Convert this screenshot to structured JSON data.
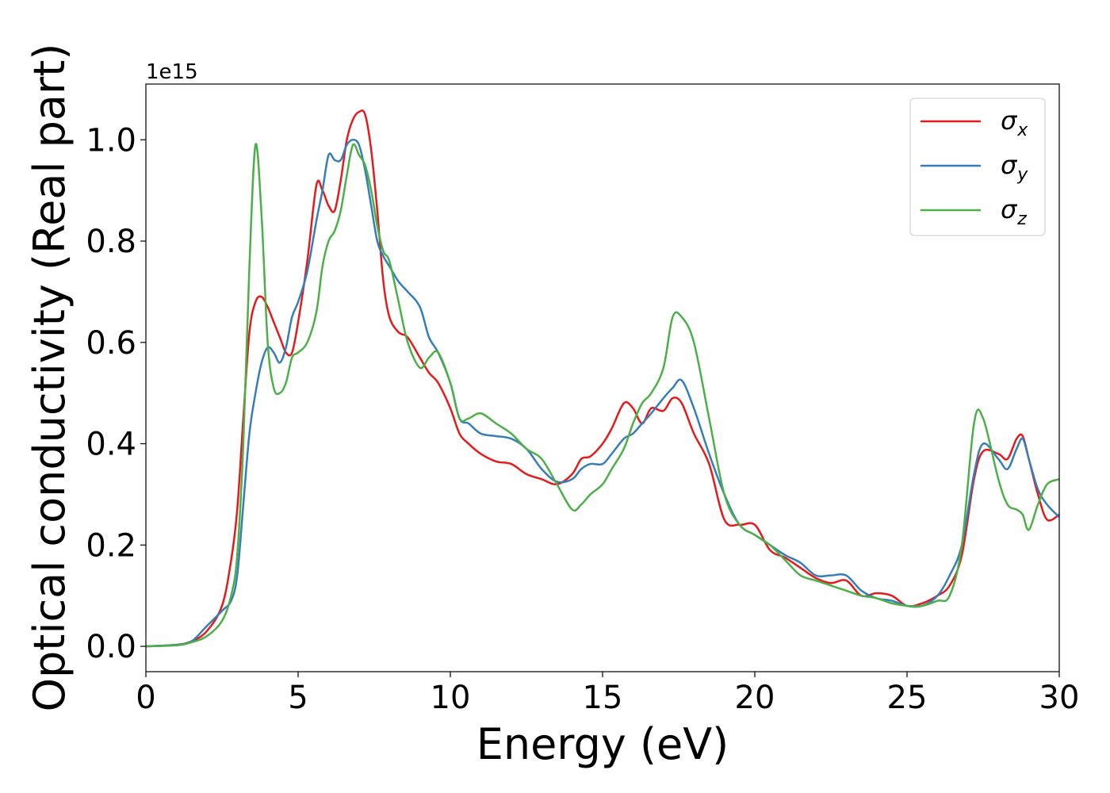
{
  "chart_data": {
    "type": "line",
    "title": "",
    "xlabel": "Energy (eV)",
    "ylabel": "Optical conductivity (Real part)",
    "y_offset_label": "1e15",
    "xlim": [
      0,
      30
    ],
    "ylim": [
      -0.05,
      1.11
    ],
    "x_ticks": [
      0,
      5,
      10,
      15,
      20,
      25,
      30
    ],
    "x_tick_labels": [
      "0",
      "5",
      "10",
      "15",
      "20",
      "25",
      "30"
    ],
    "y_ticks": [
      0.0,
      0.2,
      0.4,
      0.6,
      0.8,
      1.0
    ],
    "y_tick_labels": [
      "0.0",
      "0.2",
      "0.4",
      "0.6",
      "0.8",
      "1.0"
    ],
    "grid": false,
    "legend_position": "top-right",
    "series": [
      {
        "name": "σx",
        "symbol": "σ",
        "subscript": "x",
        "color": "#e41a1c",
        "x": [
          0,
          1,
          1.5,
          2,
          2.5,
          2.8,
          3.0,
          3.2,
          3.4,
          3.6,
          3.8,
          4.0,
          4.2,
          4.4,
          4.6,
          4.8,
          5.0,
          5.3,
          5.6,
          5.8,
          6.0,
          6.2,
          6.4,
          6.6,
          6.8,
          7.0,
          7.2,
          7.4,
          7.6,
          7.8,
          8.0,
          8.3,
          8.6,
          9.0,
          9.3,
          9.6,
          10.0,
          10.3,
          10.6,
          11.0,
          11.5,
          12.0,
          12.5,
          13.0,
          13.5,
          14.0,
          14.3,
          14.6,
          15.0,
          15.3,
          15.7,
          16.0,
          16.3,
          16.6,
          17.0,
          17.3,
          17.6,
          18.0,
          18.5,
          19.0,
          19.5,
          20.0,
          20.5,
          21.0,
          21.5,
          22.0,
          22.5,
          23.0,
          23.5,
          24.0,
          24.5,
          25.0,
          25.5,
          26.0,
          26.4,
          26.8,
          27.2,
          27.5,
          28.0,
          28.3,
          28.6,
          28.8,
          29.0,
          29.3,
          29.6,
          30.0
        ],
        "y": [
          0.0,
          0.003,
          0.01,
          0.03,
          0.08,
          0.17,
          0.27,
          0.45,
          0.62,
          0.68,
          0.69,
          0.67,
          0.64,
          0.61,
          0.58,
          0.58,
          0.64,
          0.76,
          0.91,
          0.9,
          0.87,
          0.86,
          0.92,
          1.0,
          1.04,
          1.055,
          1.05,
          0.98,
          0.86,
          0.72,
          0.65,
          0.62,
          0.61,
          0.57,
          0.54,
          0.52,
          0.47,
          0.42,
          0.4,
          0.38,
          0.365,
          0.36,
          0.34,
          0.33,
          0.32,
          0.34,
          0.37,
          0.375,
          0.4,
          0.43,
          0.48,
          0.47,
          0.44,
          0.47,
          0.465,
          0.49,
          0.48,
          0.42,
          0.36,
          0.25,
          0.24,
          0.24,
          0.19,
          0.175,
          0.155,
          0.135,
          0.125,
          0.13,
          0.1,
          0.105,
          0.1,
          0.08,
          0.085,
          0.1,
          0.12,
          0.18,
          0.33,
          0.385,
          0.38,
          0.37,
          0.41,
          0.415,
          0.37,
          0.3,
          0.25,
          0.26
        ]
      },
      {
        "name": "σy",
        "symbol": "σ",
        "subscript": "y",
        "color": "#377eb8",
        "x": [
          0,
          1,
          1.5,
          2,
          2.5,
          2.8,
          3.0,
          3.2,
          3.4,
          3.6,
          3.8,
          4.0,
          4.2,
          4.4,
          4.6,
          4.8,
          5.0,
          5.3,
          5.6,
          5.8,
          6.0,
          6.2,
          6.4,
          6.6,
          6.8,
          7.0,
          7.2,
          7.4,
          7.6,
          7.8,
          8.0,
          8.3,
          8.6,
          9.0,
          9.3,
          9.6,
          10.0,
          10.3,
          10.6,
          11.0,
          11.5,
          12.0,
          12.5,
          13.0,
          13.5,
          14.0,
          14.3,
          14.6,
          15.0,
          15.3,
          15.7,
          16.0,
          16.3,
          16.6,
          17.0,
          17.3,
          17.6,
          18.0,
          18.5,
          19.0,
          19.5,
          20.0,
          20.5,
          21.0,
          21.5,
          22.0,
          22.5,
          23.0,
          23.5,
          24.0,
          24.5,
          25.0,
          25.5,
          26.0,
          26.4,
          26.8,
          27.2,
          27.5,
          28.0,
          28.3,
          28.6,
          28.8,
          29.0,
          29.3,
          29.6,
          30.0
        ],
        "y": [
          0.0,
          0.003,
          0.01,
          0.04,
          0.07,
          0.09,
          0.14,
          0.28,
          0.42,
          0.5,
          0.56,
          0.59,
          0.58,
          0.56,
          0.59,
          0.65,
          0.68,
          0.74,
          0.84,
          0.9,
          0.97,
          0.96,
          0.96,
          0.99,
          1.0,
          0.99,
          0.94,
          0.87,
          0.8,
          0.77,
          0.75,
          0.72,
          0.7,
          0.67,
          0.61,
          0.58,
          0.52,
          0.45,
          0.44,
          0.42,
          0.415,
          0.41,
          0.39,
          0.35,
          0.325,
          0.33,
          0.35,
          0.36,
          0.36,
          0.38,
          0.41,
          0.42,
          0.44,
          0.46,
          0.49,
          0.51,
          0.525,
          0.47,
          0.38,
          0.3,
          0.24,
          0.22,
          0.2,
          0.18,
          0.165,
          0.14,
          0.14,
          0.14,
          0.11,
          0.095,
          0.09,
          0.08,
          0.08,
          0.1,
          0.14,
          0.2,
          0.34,
          0.4,
          0.37,
          0.35,
          0.39,
          0.41,
          0.37,
          0.31,
          0.28,
          0.255
        ]
      },
      {
        "name": "σz",
        "symbol": "σ",
        "subscript": "z",
        "color": "#4daf4a",
        "x": [
          0,
          1,
          1.5,
          2,
          2.5,
          2.8,
          3.0,
          3.2,
          3.4,
          3.6,
          3.8,
          4.0,
          4.2,
          4.4,
          4.6,
          4.8,
          5.0,
          5.3,
          5.6,
          5.8,
          6.0,
          6.2,
          6.4,
          6.6,
          6.8,
          7.0,
          7.2,
          7.4,
          7.6,
          7.8,
          8.0,
          8.3,
          8.6,
          9.0,
          9.3,
          9.6,
          10.0,
          10.3,
          10.6,
          11.0,
          11.5,
          12.0,
          12.5,
          13.0,
          13.5,
          14.0,
          14.3,
          14.6,
          15.0,
          15.3,
          15.7,
          16.0,
          16.3,
          16.6,
          17.0,
          17.3,
          17.6,
          18.0,
          18.5,
          19.0,
          19.5,
          20.0,
          20.5,
          21.0,
          21.5,
          22.0,
          22.5,
          23.0,
          23.5,
          24.0,
          24.5,
          25.0,
          25.5,
          26.0,
          26.4,
          26.8,
          27.2,
          27.5,
          28.0,
          28.3,
          28.6,
          28.8,
          29.0,
          29.3,
          29.6,
          30.0
        ],
        "y": [
          0.0,
          0.002,
          0.008,
          0.02,
          0.05,
          0.1,
          0.18,
          0.4,
          0.75,
          0.99,
          0.85,
          0.6,
          0.51,
          0.5,
          0.52,
          0.57,
          0.58,
          0.6,
          0.66,
          0.75,
          0.8,
          0.82,
          0.86,
          0.93,
          0.99,
          0.97,
          0.95,
          0.9,
          0.83,
          0.78,
          0.76,
          0.68,
          0.6,
          0.55,
          0.57,
          0.58,
          0.52,
          0.45,
          0.45,
          0.46,
          0.44,
          0.42,
          0.39,
          0.37,
          0.32,
          0.27,
          0.28,
          0.3,
          0.32,
          0.35,
          0.39,
          0.44,
          0.48,
          0.5,
          0.55,
          0.65,
          0.65,
          0.6,
          0.45,
          0.3,
          0.24,
          0.22,
          0.2,
          0.17,
          0.14,
          0.13,
          0.12,
          0.11,
          0.1,
          0.095,
          0.085,
          0.08,
          0.08,
          0.09,
          0.1,
          0.2,
          0.44,
          0.45,
          0.33,
          0.28,
          0.27,
          0.26,
          0.23,
          0.28,
          0.32,
          0.33
        ]
      }
    ]
  }
}
